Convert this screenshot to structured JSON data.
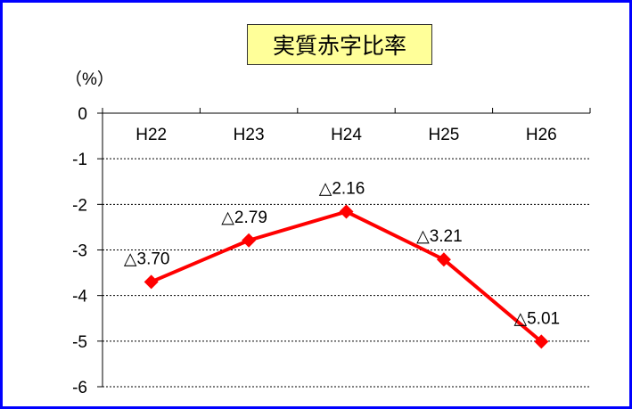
{
  "chart_data": {
    "type": "line",
    "title": "実質赤字比率",
    "ylabel": "（%）",
    "categories": [
      "H22",
      "H23",
      "H24",
      "H25",
      "H26"
    ],
    "series": [
      {
        "values": [
          -3.7,
          -2.79,
          -2.16,
          -3.21,
          -5.01
        ],
        "color": "#ff0000"
      }
    ],
    "data_labels": [
      "△3.70",
      "△2.79",
      "△2.16",
      "△3.21",
      "△5.01"
    ],
    "yticks": [
      "0",
      "-1",
      "-2",
      "-3",
      "-4",
      "-5",
      "-6"
    ],
    "ylim": [
      -6,
      0
    ],
    "grid": true
  }
}
